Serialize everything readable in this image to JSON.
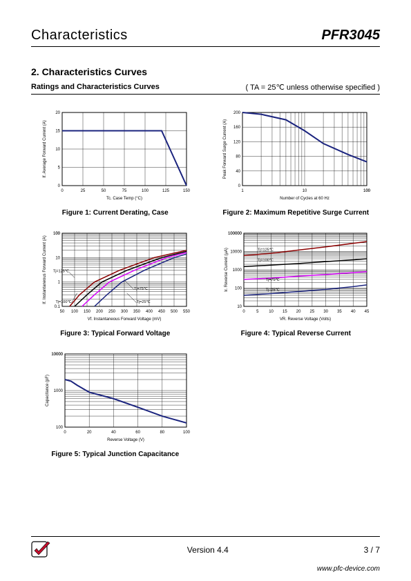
{
  "header": {
    "left": "Characteristics",
    "right": "PFR3045"
  },
  "section": {
    "number_title": "2.  Characteristics Curves",
    "subtitle": "Ratings and Characteristics Curves",
    "note": "( TA = 25℃  unless otherwise specified )"
  },
  "figures": {
    "f1": {
      "caption": "Figure 1: Current Derating, Case",
      "xlabel": "Tc. Case Temp (°C)",
      "ylabel": "If. Average Forward Current (A)",
      "xlim": [
        0,
        150
      ],
      "xtick_step": 25,
      "ylim": [
        0,
        20
      ],
      "ytick_step": 5,
      "line_color": "#1a237e",
      "line_width": 2,
      "grid_color": "#000000",
      "background": "#ffffff",
      "data_x": [
        0,
        25,
        50,
        75,
        100,
        120,
        150
      ],
      "data_y": [
        15,
        15,
        15,
        15,
        15,
        15,
        0
      ]
    },
    "f2": {
      "caption": "Figure 2: Maximum Repetitive Surge Current",
      "xlabel": "Number of Cycles at 60 Hz",
      "ylabel": "Peak Forward Surge Current (A)",
      "xlim": [
        1,
        100
      ],
      "xscale": "log",
      "ylim": [
        0,
        200
      ],
      "ytick_step": 40,
      "line_color": "#1a237e",
      "line_width": 2,
      "grid_color": "#000000",
      "data_x": [
        1,
        2,
        5,
        10,
        20,
        50,
        100
      ],
      "data_y": [
        200,
        195,
        180,
        150,
        115,
        85,
        65
      ]
    },
    "f3": {
      "caption": "Figure 3: Typical Forward Voltage",
      "xlabel": "Vf. Instantaneous Forward Voltage (mV)",
      "ylabel": "If. Instantaneous Forward Current (A)",
      "xlim": [
        50,
        550
      ],
      "xtick_step": 50,
      "ylim": [
        0.1,
        100
      ],
      "yscale": "log",
      "grid_color": "#000000",
      "series": [
        {
          "label": "Tj=125℃",
          "color": "#8b0000",
          "x": [
            80,
            120,
            180,
            280,
            420,
            550
          ],
          "y": [
            0.1,
            0.3,
            1,
            3,
            10,
            20
          ]
        },
        {
          "label": "Tj=100℃",
          "color": "#000000",
          "x": [
            100,
            150,
            210,
            310,
            450,
            550
          ],
          "y": [
            0.1,
            0.3,
            1,
            3,
            10,
            18
          ]
        },
        {
          "label": "Tj=75℃",
          "color": "#d500f9",
          "x": [
            130,
            180,
            240,
            340,
            470,
            550
          ],
          "y": [
            0.1,
            0.3,
            1,
            3,
            10,
            16
          ]
        },
        {
          "label": "Tj=25℃",
          "color": "#1a237e",
          "x": [
            180,
            230,
            290,
            380,
            500,
            550
          ],
          "y": [
            0.1,
            0.3,
            1,
            3,
            10,
            14
          ]
        }
      ]
    },
    "f4": {
      "caption": "Figure 4: Typical Reverse Current",
      "xlabel": "VR. Reverse Voltage (Volts)",
      "ylabel": "Ir. Reverse Current (μA)",
      "xlim": [
        0,
        45
      ],
      "xtick_step": 5,
      "ylim": [
        10,
        100000
      ],
      "yscale": "log",
      "grid_color": "#000000",
      "series": [
        {
          "label": "Tj=125℃",
          "color": "#8b0000",
          "x": [
            0,
            10,
            20,
            30,
            40,
            45
          ],
          "y": [
            6000,
            8000,
            12000,
            18000,
            28000,
            35000
          ]
        },
        {
          "label": "Tj=100℃",
          "color": "#000000",
          "x": [
            0,
            10,
            20,
            30,
            40,
            45
          ],
          "y": [
            1500,
            1800,
            2200,
            2800,
            3500,
            4000
          ]
        },
        {
          "label": "Tj=75℃",
          "color": "#d500f9",
          "x": [
            0,
            10,
            20,
            30,
            40,
            45
          ],
          "y": [
            300,
            350,
            450,
            550,
            700,
            800
          ]
        },
        {
          "label": "Tj=25℃",
          "color": "#1a237e",
          "x": [
            0,
            10,
            20,
            30,
            40,
            45
          ],
          "y": [
            40,
            50,
            65,
            85,
            120,
            150
          ]
        }
      ]
    },
    "f5": {
      "caption": "Figure 5: Typical Junction Capacitance",
      "xlabel": "Reverse Voltage (V)",
      "ylabel": "Capacitance (pF)",
      "xlim": [
        0,
        100
      ],
      "xtick_step": 20,
      "ylim": [
        100,
        10000
      ],
      "yscale": "log",
      "line_color": "#1a237e",
      "line_width": 2,
      "grid_color": "#000000",
      "data_x": [
        0,
        5,
        10,
        20,
        40,
        60,
        80,
        100
      ],
      "data_y": [
        2000,
        1800,
        1400,
        900,
        600,
        350,
        200,
        130
      ]
    }
  },
  "footer": {
    "version": "Version 4.4",
    "page": "3 / 7",
    "url": "www.pfc-device.com"
  },
  "colors": {
    "logo_red": "#c8102e",
    "logo_border": "#000000"
  }
}
